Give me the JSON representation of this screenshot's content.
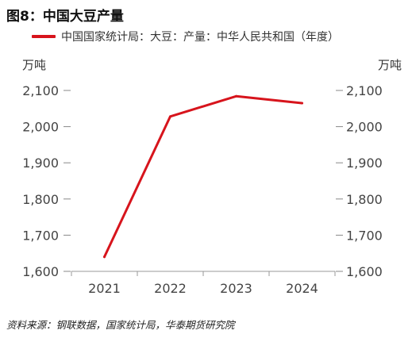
{
  "figure": {
    "title": "图8：中国大豆产量",
    "source": "资料来源：钢联数据，国家统计局，华泰期货研究院"
  },
  "chart_data": {
    "type": "line",
    "categories": [
      "2021",
      "2022",
      "2023",
      "2024"
    ],
    "series": [
      {
        "name": "中国国家统计局：大豆：产量：中华人民共和国（年度）",
        "values": [
          1640,
          2028,
          2084,
          2065
        ],
        "color": "#d7141c"
      }
    ],
    "y_left": {
      "label": "万吨",
      "ylim": [
        1600,
        2100
      ],
      "ticks": [
        "1,600",
        "1,700",
        "1,800",
        "1,900",
        "2,000",
        "2,100"
      ]
    },
    "y_right": {
      "label": "万吨",
      "ylim": [
        1600,
        2100
      ],
      "ticks": [
        "1,600",
        "1,700",
        "1,800",
        "1,900",
        "2,000",
        "2,100"
      ]
    },
    "grid": false,
    "legend_position": "top"
  }
}
